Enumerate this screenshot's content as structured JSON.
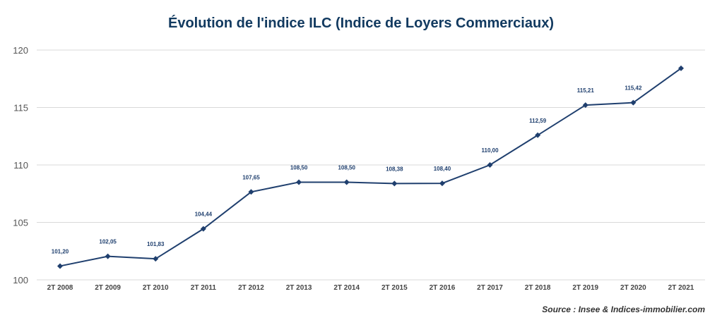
{
  "chart_data": {
    "type": "line",
    "title": "Évolution de l'indice ILC (Indice de Loyers Commerciaux)",
    "source": "Source : Insee & Indices-immobilier.com",
    "categories": [
      "2T 2008",
      "2T 2009",
      "2T 2010",
      "2T 2011",
      "2T 2012",
      "2T 2013",
      "2T 2014",
      "2T 2015",
      "2T 2016",
      "2T 2017",
      "2T 2018",
      "2T 2019",
      "2T 2020",
      "2T 2021"
    ],
    "values": [
      101.2,
      102.05,
      101.83,
      104.44,
      107.65,
      108.5,
      108.5,
      108.38,
      108.4,
      110.0,
      112.59,
      115.21,
      115.42,
      118.41
    ],
    "data_labels": [
      "101,20",
      "102,05",
      "101,83",
      "104,44",
      "107,65",
      "108,50",
      "108,50",
      "108,38",
      "108,40",
      "110,00",
      "112,59",
      "115,21",
      "115,42",
      ""
    ],
    "yticks": [
      "100",
      "105",
      "110",
      "115",
      "120"
    ],
    "ylim": [
      100,
      120
    ],
    "grid": true,
    "colors": {
      "line": "#1f3f6e",
      "grid": "#d9d9d9",
      "title": "#123a60"
    }
  }
}
